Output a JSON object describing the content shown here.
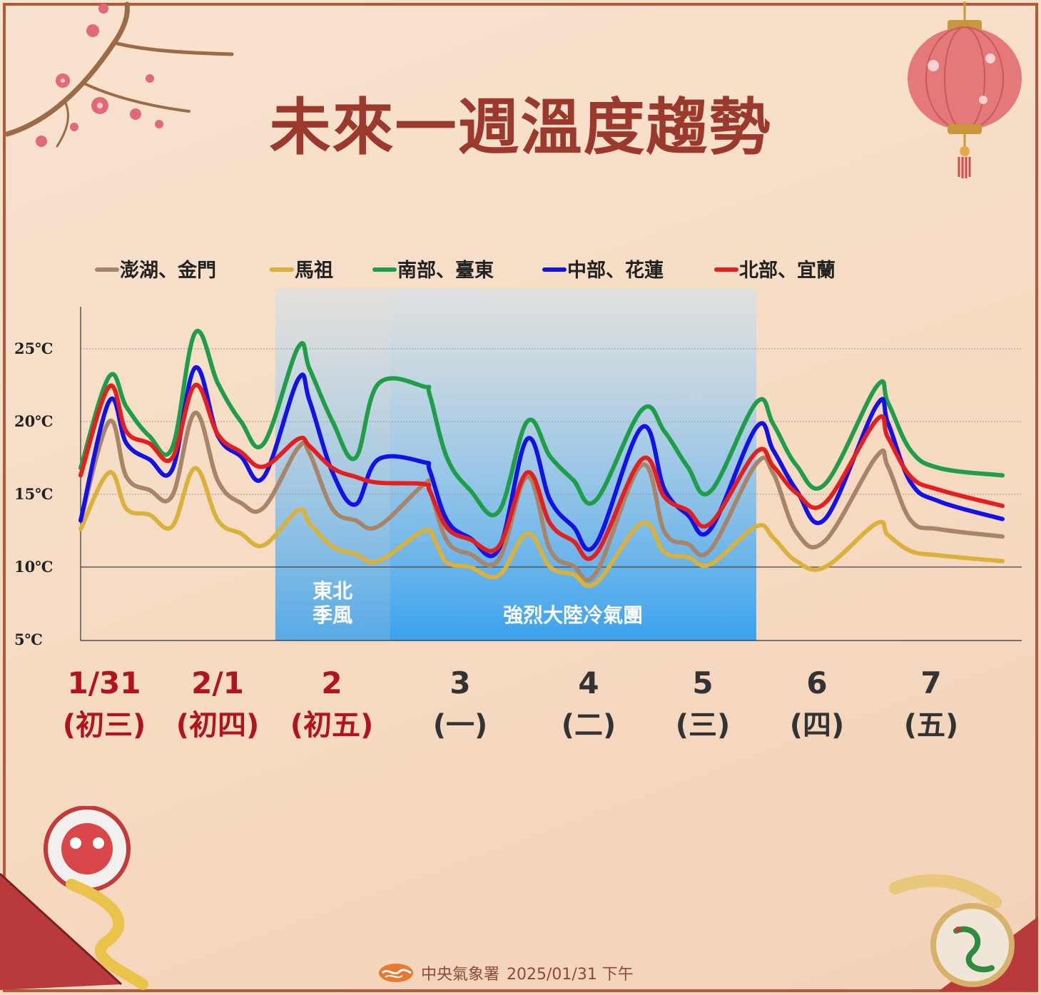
{
  "title": "未來一週溫度趨勢",
  "footer": {
    "agency": "中央氣象署",
    "datetime": "2025/01/31 下午"
  },
  "colors": {
    "title": "#9b3a2c",
    "holiday_date": "#b2141b",
    "weekday_date": "#333333",
    "band_top": "#cde2f2",
    "band_bottom": "#3aa2ee"
  },
  "chart_data": {
    "type": "line",
    "y_unit": "℃",
    "y_ticks": [
      "25℃",
      "20℃",
      "15℃",
      "10℃",
      "5℃"
    ],
    "y_tick_values": [
      25,
      20,
      15,
      10,
      5
    ],
    "ylim": [
      5,
      28
    ],
    "xlim": [
      0,
      8.15
    ],
    "grid": true,
    "legend_position": "top",
    "days": [
      {
        "date": "1/31",
        "label": "(初三)",
        "holiday": true
      },
      {
        "date": "2/1",
        "label": "(初四)",
        "holiday": true
      },
      {
        "date": "2",
        "label": "(初五)",
        "holiday": true
      },
      {
        "date": "3",
        "label": "(一)",
        "holiday": false
      },
      {
        "date": "4",
        "label": "(二)",
        "holiday": false
      },
      {
        "date": "5",
        "label": "(三)",
        "holiday": false
      },
      {
        "date": "6",
        "label": "(四)",
        "holiday": false
      },
      {
        "date": "7",
        "label": "(五)",
        "holiday": false
      }
    ],
    "annotations": [
      {
        "text_lines": [
          "東北",
          "季風"
        ],
        "x_start": 1.7,
        "x_end": 2.7
      },
      {
        "text_lines": [
          "強烈大陸冷氣團"
        ],
        "x_start": 2.7,
        "x_end": 5.9
      }
    ],
    "series": [
      {
        "name": "澎湖、金門",
        "color": "#a88468",
        "x": [
          0.0,
          0.25,
          0.4,
          0.6,
          0.8,
          1.0,
          1.2,
          1.4,
          1.6,
          1.9,
          2.0,
          2.2,
          2.4,
          2.6,
          3.0,
          3.05,
          3.2,
          3.4,
          3.65,
          3.9,
          4.1,
          4.3,
          4.5,
          4.9,
          5.1,
          5.3,
          5.5,
          5.9,
          6.05,
          6.25,
          6.5,
          6.95,
          7.05,
          7.25,
          7.5,
          8.05
        ],
        "y": [
          13.2,
          20.0,
          16.2,
          15.3,
          14.9,
          20.6,
          15.9,
          14.4,
          14.1,
          18.2,
          17.8,
          14.0,
          13.2,
          12.8,
          15.7,
          15.3,
          11.8,
          10.9,
          10.5,
          16.2,
          11.2,
          10.1,
          9.6,
          17.0,
          12.4,
          11.6,
          11.2,
          17.1,
          16.4,
          12.4,
          11.8,
          17.6,
          16.9,
          13.2,
          12.6,
          12.1
        ]
      },
      {
        "name": "馬祖",
        "color": "#d9b13b",
        "x": [
          0.0,
          0.25,
          0.4,
          0.6,
          0.8,
          1.0,
          1.2,
          1.4,
          1.6,
          1.9,
          2.0,
          2.2,
          2.4,
          2.6,
          3.0,
          3.1,
          3.2,
          3.4,
          3.65,
          3.9,
          4.1,
          4.3,
          4.5,
          4.9,
          5.1,
          5.3,
          5.5,
          5.9,
          6.05,
          6.25,
          6.5,
          6.95,
          7.05,
          7.25,
          7.5,
          8.05
        ],
        "y": [
          12.6,
          16.5,
          14.0,
          13.6,
          12.8,
          16.8,
          13.2,
          12.3,
          11.5,
          13.9,
          13.0,
          11.4,
          10.9,
          10.4,
          12.5,
          11.7,
          10.3,
          10.0,
          9.4,
          12.3,
          10.0,
          9.5,
          8.9,
          13.0,
          11.0,
          10.7,
          10.2,
          12.8,
          12.0,
          10.4,
          10.0,
          13.0,
          12.2,
          11.1,
          10.8,
          10.4
        ]
      },
      {
        "name": "南部、臺東",
        "color": "#1e9e48",
        "x": [
          0.0,
          0.25,
          0.4,
          0.6,
          0.8,
          1.0,
          1.2,
          1.4,
          1.6,
          1.9,
          2.0,
          2.2,
          2.4,
          2.6,
          3.0,
          3.05,
          3.2,
          3.4,
          3.65,
          3.9,
          4.1,
          4.3,
          4.5,
          4.9,
          5.1,
          5.3,
          5.5,
          5.9,
          6.05,
          6.25,
          6.5,
          6.95,
          7.05,
          7.25,
          7.5,
          8.05
        ],
        "y": [
          16.8,
          23.1,
          21.0,
          19.0,
          18.2,
          26.1,
          22.6,
          20.0,
          18.5,
          25.1,
          23.6,
          20.0,
          17.5,
          22.6,
          22.4,
          21.8,
          17.5,
          15.3,
          13.8,
          20.0,
          17.6,
          16.0,
          14.6,
          20.8,
          19.3,
          16.9,
          15.2,
          21.3,
          19.8,
          17.0,
          15.7,
          22.4,
          21.3,
          18.0,
          16.8,
          16.3
        ]
      },
      {
        "name": "中部、花蓮",
        "color": "#1212e8",
        "x": [
          0.0,
          0.25,
          0.4,
          0.6,
          0.8,
          1.0,
          1.2,
          1.4,
          1.6,
          1.9,
          2.0,
          2.2,
          2.4,
          2.6,
          3.0,
          3.05,
          3.2,
          3.4,
          3.65,
          3.9,
          4.1,
          4.3,
          4.5,
          4.9,
          5.1,
          5.3,
          5.5,
          5.9,
          6.05,
          6.25,
          6.5,
          6.95,
          7.05,
          7.25,
          7.5,
          8.05
        ],
        "y": [
          13.2,
          21.4,
          18.5,
          17.4,
          16.7,
          23.7,
          19.0,
          17.6,
          16.2,
          22.9,
          21.4,
          16.5,
          14.3,
          17.4,
          17.2,
          16.6,
          13.2,
          12.0,
          11.2,
          18.8,
          14.6,
          12.8,
          11.6,
          19.6,
          15.3,
          13.6,
          12.6,
          19.6,
          18.0,
          15.3,
          13.3,
          21.1,
          19.9,
          15.8,
          14.5,
          13.3
        ]
      },
      {
        "name": "北部、宜蘭",
        "color": "#e51f1f",
        "x": [
          0.0,
          0.25,
          0.4,
          0.6,
          0.8,
          1.0,
          1.2,
          1.4,
          1.6,
          1.9,
          2.0,
          2.2,
          2.4,
          2.6,
          3.0,
          3.05,
          3.2,
          3.4,
          3.65,
          3.9,
          4.1,
          4.3,
          4.5,
          4.9,
          5.1,
          5.3,
          5.5,
          5.9,
          6.05,
          6.25,
          6.5,
          6.95,
          7.05,
          7.25,
          7.5,
          8.05
        ],
        "y": [
          16.3,
          22.4,
          19.3,
          18.5,
          17.5,
          22.5,
          19.1,
          17.9,
          16.9,
          18.8,
          18.3,
          16.8,
          16.2,
          15.8,
          15.7,
          15.2,
          12.7,
          11.9,
          11.4,
          16.5,
          13.0,
          11.8,
          10.9,
          17.4,
          14.8,
          13.9,
          13.0,
          17.9,
          16.9,
          15.1,
          14.4,
          20.1,
          18.9,
          16.2,
          15.3,
          14.2
        ]
      }
    ]
  }
}
